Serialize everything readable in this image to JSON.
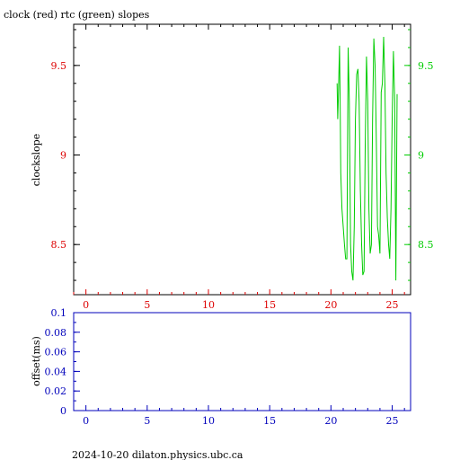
{
  "title": "clock (red) rtc (green) slopes",
  "footer": "2024-10-20  dilaton.physics.ubc.ca",
  "colors": {
    "red": "#dd0000",
    "green": "#00cc00",
    "blue": "#0000bb",
    "axis": "#000000"
  },
  "chart_data": [
    {
      "type": "line",
      "ylabel": "clockslope",
      "xlim": [
        -1,
        26.5
      ],
      "ylim": [
        8.22,
        9.73
      ],
      "x_ticks": [
        0,
        5,
        10,
        15,
        20,
        25
      ],
      "y_ticks_left": [
        "8.5",
        "9",
        "9.5"
      ],
      "y_ticks_right": [
        "8.5",
        "9",
        "9.5"
      ],
      "tick_values": [
        8.5,
        9,
        9.5
      ],
      "series": [
        {
          "color": "#00cc00",
          "x": [
            20.5,
            20.55,
            20.6,
            20.7,
            20.75,
            20.8,
            20.9,
            21.0,
            21.1,
            21.2,
            21.3,
            21.4,
            21.5,
            21.6,
            21.7,
            21.8,
            21.9,
            22.0,
            22.1,
            22.2,
            22.3,
            22.4,
            22.5,
            22.6,
            22.7,
            22.8,
            22.9,
            23.0,
            23.1,
            23.2,
            23.3,
            23.4,
            23.5,
            23.6,
            23.7,
            23.8,
            23.9,
            24.0,
            24.1,
            24.2,
            24.3,
            24.4,
            24.5,
            24.6,
            24.7,
            24.8,
            24.9,
            25.0,
            25.1,
            25.2,
            25.3,
            25.4
          ],
          "y": [
            9.4,
            9.2,
            9.3,
            9.61,
            9.3,
            8.9,
            8.7,
            8.6,
            8.5,
            8.42,
            8.42,
            9.6,
            9.3,
            8.5,
            8.35,
            8.3,
            8.6,
            9.2,
            9.45,
            9.48,
            9.3,
            8.8,
            8.5,
            8.33,
            8.35,
            9.05,
            9.55,
            9.3,
            8.7,
            8.45,
            8.5,
            9.2,
            9.65,
            9.5,
            9.1,
            8.6,
            8.55,
            8.45,
            9.35,
            9.4,
            9.66,
            9.4,
            8.9,
            8.65,
            8.5,
            8.42,
            8.7,
            9.2,
            9.58,
            9.3,
            8.3,
            9.34
          ]
        }
      ]
    },
    {
      "type": "line",
      "ylabel": "offset(ms)",
      "xlim": [
        -1,
        26.5
      ],
      "ylim": [
        0,
        0.1
      ],
      "x_ticks": [
        0,
        5,
        10,
        15,
        20,
        25
      ],
      "y_ticks": [
        "0",
        "0.02",
        "0.04",
        "0.06",
        "0.08",
        "0.1"
      ],
      "tick_values": [
        0,
        0.02,
        0.04,
        0.06,
        0.08,
        0.1
      ],
      "series": []
    }
  ]
}
